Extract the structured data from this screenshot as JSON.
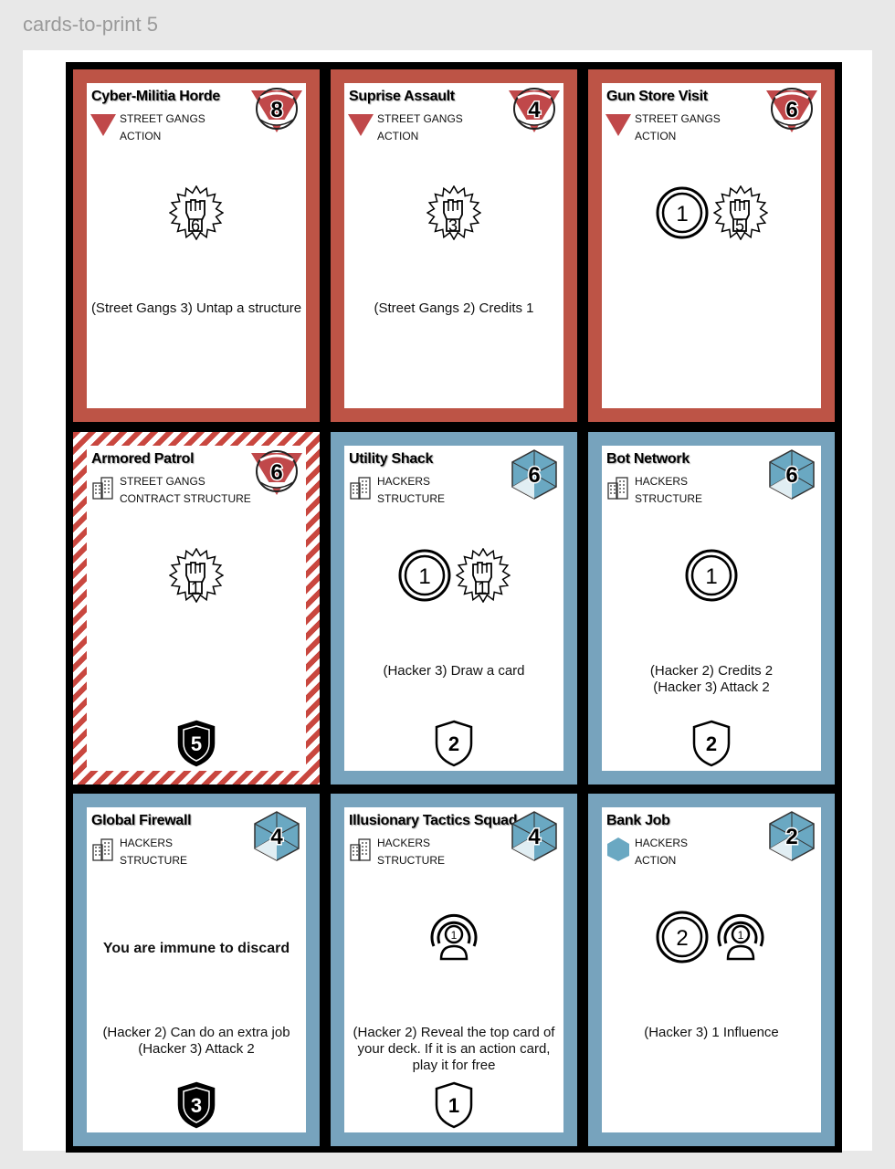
{
  "document_title": "cards-to-print 5",
  "colors": {
    "street_gangs": "#bd5446",
    "hackers": "#77a3bd",
    "cost_red": "#c0484a",
    "cost_blue": "#6aa8c2"
  },
  "cards": [
    {
      "title": "Cyber-Militia Horde",
      "faction": "STREET GANGS",
      "type": "ACTION",
      "faction_icon": "triangle-icon",
      "frame": "red",
      "cost": "8",
      "cost_shape": "shield-red",
      "icons": [
        {
          "kind": "attack",
          "value": "6"
        }
      ],
      "texts": [
        {
          "text": "(Street Gangs 3) Untap a structure",
          "bold": false,
          "row": "main"
        }
      ],
      "defense": null
    },
    {
      "title": "Suprise Assault",
      "faction": "STREET GANGS",
      "type": "ACTION",
      "faction_icon": "triangle-icon",
      "frame": "red",
      "cost": "4",
      "cost_shape": "shield-red",
      "icons": [
        {
          "kind": "attack",
          "value": "3"
        }
      ],
      "texts": [
        {
          "text": "(Street Gangs 2) Credits 1",
          "bold": false,
          "row": "main"
        }
      ],
      "defense": null
    },
    {
      "title": "Gun Store Visit",
      "faction": "STREET GANGS",
      "type": "ACTION",
      "faction_icon": "triangle-icon",
      "frame": "red",
      "cost": "6",
      "cost_shape": "shield-red",
      "icons": [
        {
          "kind": "credit",
          "value": "1"
        },
        {
          "kind": "attack",
          "value": "5"
        }
      ],
      "texts": [],
      "defense": null
    },
    {
      "title": "Armored Patrol",
      "faction": "STREET GANGS",
      "type": "CONTRACT STRUCTURE",
      "faction_icon": "building-icon",
      "frame": "stripe",
      "cost": "6",
      "cost_shape": "shield-red",
      "icons": [
        {
          "kind": "attack",
          "value": "1"
        }
      ],
      "texts": [],
      "defense": {
        "value": "5",
        "style": "black"
      }
    },
    {
      "title": "Utility Shack",
      "faction": "HACKERS",
      "type": "STRUCTURE",
      "faction_icon": "building-icon",
      "frame": "blue",
      "cost": "6",
      "cost_shape": "hex-blue",
      "icons": [
        {
          "kind": "credit",
          "value": "1"
        },
        {
          "kind": "attack",
          "value": "1"
        }
      ],
      "texts": [
        {
          "text": "(Hacker 3) Draw a card",
          "bold": false,
          "row": "main"
        }
      ],
      "defense": {
        "value": "2",
        "style": "white"
      }
    },
    {
      "title": "Bot Network",
      "faction": "HACKERS",
      "type": "STRUCTURE",
      "faction_icon": "building-icon",
      "frame": "blue",
      "cost": "6",
      "cost_shape": "hex-blue",
      "icons": [
        {
          "kind": "credit",
          "value": "1"
        }
      ],
      "texts": [
        {
          "text": "(Hacker 2) Credits 2\n(Hacker 3) Attack 2",
          "bold": false,
          "row": "main"
        }
      ],
      "defense": {
        "value": "2",
        "style": "white"
      }
    },
    {
      "title": "Global Firewall",
      "faction": "HACKERS",
      "type": "STRUCTURE",
      "faction_icon": "building-icon",
      "frame": "blue",
      "cost": "4",
      "cost_shape": "hex-blue",
      "icons": [],
      "texts": [
        {
          "text": "You are immune to discard",
          "bold": true,
          "row": "upper"
        },
        {
          "text": "(Hacker 2) Can do an extra job\n(Hacker 3) Attack 2",
          "bold": false,
          "row": "main"
        }
      ],
      "defense": {
        "value": "3",
        "style": "black"
      }
    },
    {
      "title": "Illusionary Tactics Squad",
      "faction": "HACKERS",
      "type": "STRUCTURE",
      "faction_icon": "building-icon",
      "frame": "blue",
      "cost": "4",
      "cost_shape": "hex-blue",
      "icons": [
        {
          "kind": "influence",
          "value": "1"
        }
      ],
      "texts": [
        {
          "text": "(Hacker 2) Reveal the top card of your deck. If it is an action card, play it for free",
          "bold": false,
          "row": "main"
        }
      ],
      "defense": {
        "value": "1",
        "style": "white"
      }
    },
    {
      "title": "Bank Job",
      "faction": "HACKERS",
      "type": "ACTION",
      "faction_icon": "hexagon-icon",
      "frame": "blue",
      "cost": "2",
      "cost_shape": "hex-blue",
      "icons": [
        {
          "kind": "credit",
          "value": "2"
        },
        {
          "kind": "influence",
          "value": "1"
        }
      ],
      "texts": [
        {
          "text": "(Hacker 3) 1 Influence",
          "bold": false,
          "row": "main"
        }
      ],
      "defense": null
    }
  ]
}
